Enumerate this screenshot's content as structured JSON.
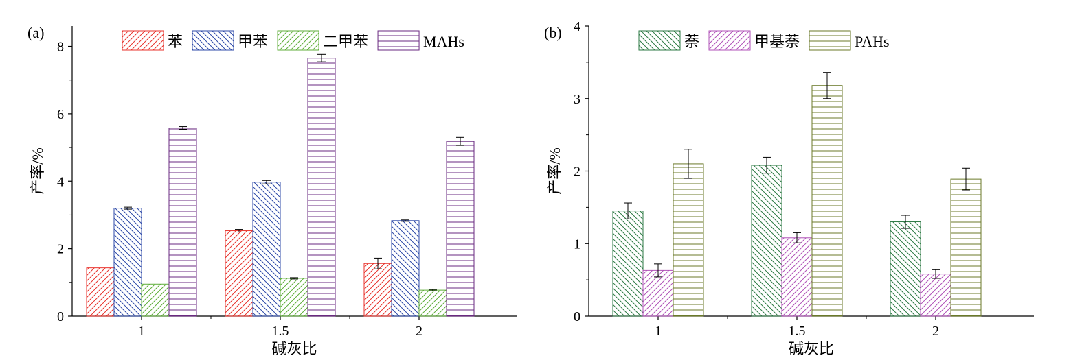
{
  "chart_data": [
    {
      "panel_label": "(a)",
      "type": "bar",
      "xlabel": "碱灰比",
      "ylabel": "产率/%",
      "categories": [
        "1",
        "1.5",
        "2"
      ],
      "ylim": [
        0,
        8.6
      ],
      "yticks": [
        "0",
        "2",
        "4",
        "6",
        "8"
      ],
      "legend_position": "top",
      "series": [
        {
          "name": "苯",
          "values": [
            1.43,
            2.53,
            1.56
          ],
          "errors": [
            0.0,
            0.04,
            0.16
          ],
          "color": "#e8322b",
          "pattern": "diag-up"
        },
        {
          "name": "甲苯",
          "values": [
            3.2,
            3.97,
            2.83
          ],
          "errors": [
            0.03,
            0.05,
            0.02
          ],
          "color": "#2e4aa8",
          "pattern": "diag-down"
        },
        {
          "name": "二甲苯",
          "values": [
            0.95,
            1.12,
            0.77
          ],
          "errors": [
            0.0,
            0.02,
            0.02
          ],
          "color": "#5fae3a",
          "pattern": "diag-up"
        },
        {
          "name": "MAHs",
          "values": [
            5.58,
            7.65,
            5.18
          ],
          "errors": [
            0.04,
            0.11,
            0.12
          ],
          "color": "#6a2a80",
          "pattern": "horizontal"
        }
      ]
    },
    {
      "panel_label": "(b)",
      "type": "bar",
      "xlabel": "碱灰比",
      "ylabel": "产率/%",
      "categories": [
        "1",
        "1.5",
        "2"
      ],
      "ylim": [
        0,
        4
      ],
      "yticks": [
        "0",
        "1",
        "2",
        "3",
        "4"
      ],
      "legend_position": "top",
      "series": [
        {
          "name": "萘",
          "values": [
            1.45,
            2.08,
            1.3
          ],
          "errors": [
            0.11,
            0.11,
            0.09
          ],
          "color": "#2d7a44",
          "pattern": "diag-down"
        },
        {
          "name": "甲基萘",
          "values": [
            0.63,
            1.08,
            0.58
          ],
          "errors": [
            0.09,
            0.07,
            0.06
          ],
          "color": "#b052b8",
          "pattern": "diag-up"
        },
        {
          "name": "PAHs",
          "values": [
            2.1,
            3.18,
            1.89
          ],
          "errors": [
            0.2,
            0.18,
            0.15
          ],
          "color": "#6b7a2a",
          "pattern": "horizontal"
        }
      ]
    }
  ]
}
